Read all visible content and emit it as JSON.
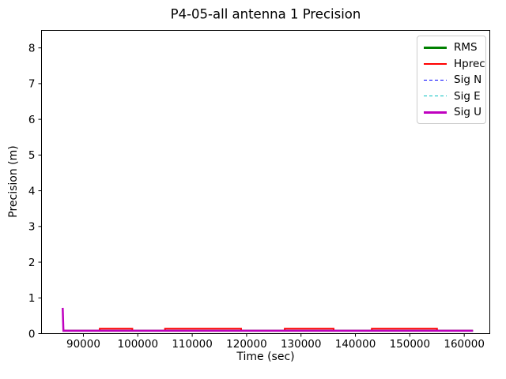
{
  "chart_data": {
    "type": "line",
    "title": "P4-05-all antenna 1 Precision",
    "xlabel": "Time (sec)",
    "ylabel": "Precision (m)",
    "xlim": [
      82300,
      164700
    ],
    "ylim": [
      0,
      8.49
    ],
    "xticks": [
      90000,
      100000,
      110000,
      120000,
      130000,
      140000,
      150000,
      160000
    ],
    "yticks": [
      0,
      1,
      2,
      3,
      4,
      5,
      6,
      7,
      8
    ],
    "grid": false,
    "legend_position": "upper right",
    "axis_color": "#000000",
    "background_color": "#ffffff",
    "series": [
      {
        "name": "RMS",
        "color": "#008000",
        "style": "solid",
        "lw": 2.5,
        "points": [
          [
            86200,
            0.08
          ],
          [
            161600,
            0.08
          ]
        ]
      },
      {
        "name": "Hprec",
        "color": "#ff0000",
        "style": "solid",
        "lw": 2.0,
        "points": [
          [
            86200,
            0.08
          ],
          [
            93000,
            0.08
          ],
          [
            93000,
            0.14
          ],
          [
            99000,
            0.14
          ],
          [
            99000,
            0.08
          ],
          [
            105000,
            0.08
          ],
          [
            105000,
            0.14
          ],
          [
            119000,
            0.14
          ],
          [
            119000,
            0.08
          ],
          [
            127000,
            0.08
          ],
          [
            127000,
            0.14
          ],
          [
            136000,
            0.14
          ],
          [
            136000,
            0.08
          ],
          [
            143000,
            0.08
          ],
          [
            143000,
            0.14
          ],
          [
            155000,
            0.14
          ],
          [
            155000,
            0.08
          ],
          [
            161600,
            0.08
          ]
        ]
      },
      {
        "name": "Sig N",
        "color": "#0000ff",
        "style": "dashed",
        "lw": 1.0,
        "points": [
          [
            86200,
            0.08
          ],
          [
            161600,
            0.08
          ]
        ]
      },
      {
        "name": "Sig E",
        "color": "#00bfbf",
        "style": "dashed",
        "lw": 1.0,
        "points": [
          [
            86200,
            0.08
          ],
          [
            161600,
            0.08
          ]
        ]
      },
      {
        "name": "Sig U",
        "color": "#bf00bf",
        "style": "solid",
        "lw": 2.5,
        "points": [
          [
            86200,
            0.72
          ],
          [
            86320,
            0.08
          ],
          [
            161600,
            0.08
          ]
        ]
      }
    ]
  }
}
